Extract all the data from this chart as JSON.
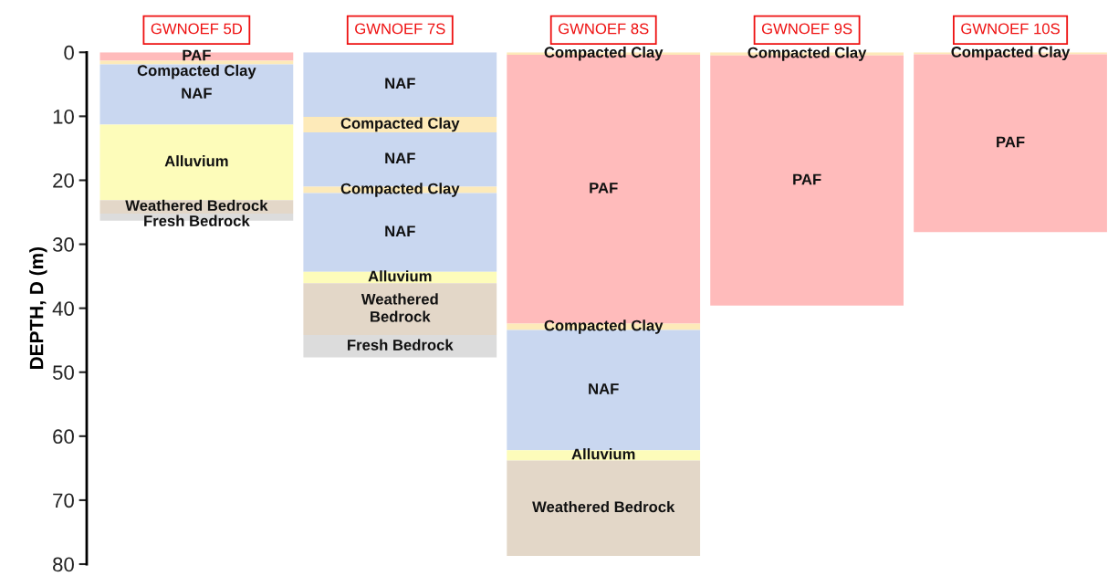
{
  "chart_data": {
    "type": "bar",
    "stacked": true,
    "ylabel": "DEPTH, D (m)",
    "categories": [
      "GWNOEF 5D",
      "GWNOEF 7S",
      "GWNOEF 8S",
      "GWNOEF 9S",
      "GWNOEF 10S"
    ],
    "ylim": [
      80,
      0
    ],
    "yticks": [
      0,
      10,
      20,
      30,
      40,
      50,
      60,
      70,
      80
    ],
    "grid": false,
    "legend": false,
    "tick_labels": "y",
    "series": [
      {
        "values": [
          1.3,
          10.1,
          0.4,
          0.5,
          0.3
        ],
        "colors": [
          "#ffbbbb",
          "#c9d7f0",
          "#fdeab9",
          "#fdeab9",
          "#fdeab9"
        ],
        "value_labels": [
          "PAF",
          "NAF",
          "Compacted Clay",
          "Compacted Clay",
          "Compacted Clay"
        ]
      },
      {
        "values": [
          0.6,
          2.4,
          42.0,
          39.1,
          27.8
        ],
        "colors": [
          "#fdeab9",
          "#fdeab9",
          "#ffbbbb",
          "#ffbbbb",
          "#ffbbbb"
        ],
        "value_labels": [
          "Compacted Clay",
          "Compacted Clay",
          "PAF",
          "PAF",
          "PAF"
        ]
      },
      {
        "values": [
          9.4,
          8.5,
          1.0,
          null,
          null
        ],
        "colors": [
          "#c9d7f0",
          "#c9d7f0",
          "#fdeab9",
          null,
          null
        ],
        "value_labels": [
          "NAF",
          "NAF",
          "Compacted Clay",
          null,
          null
        ]
      },
      {
        "values": [
          11.8,
          1.0,
          18.8,
          null,
          null
        ],
        "colors": [
          "#fdfcba",
          "#fdeab9",
          "#c9d7f0",
          null,
          null
        ],
        "value_labels": [
          "Alluvium",
          "Compacted Clay",
          "NAF",
          null,
          null
        ]
      },
      {
        "values": [
          2.1,
          12.3,
          1.6,
          null,
          null
        ],
        "colors": [
          "#e3d7c8",
          "#c9d7f0",
          "#fdfcba",
          null,
          null
        ],
        "value_labels": [
          "Weathered Bedrock",
          "NAF",
          "Alluvium",
          null,
          null
        ]
      },
      {
        "values": [
          1.1,
          1.8,
          14.9,
          null,
          null
        ],
        "colors": [
          "#dcdcdc",
          "#fdfcba",
          "#e3d7c8",
          null,
          null
        ],
        "value_labels": [
          "Fresh Bedrock",
          "Alluvium",
          "Weathered Bedrock",
          null,
          null
        ]
      },
      {
        "values": [
          null,
          8.1,
          null,
          null,
          null
        ],
        "colors": [
          null,
          "#e3d7c8",
          null,
          null,
          null
        ],
        "value_labels": [
          null,
          "Weathered\nBedrock",
          null,
          null,
          null
        ]
      },
      {
        "values": [
          null,
          3.5,
          null,
          null,
          null
        ],
        "colors": [
          null,
          "#dcdcdc",
          null,
          null,
          null
        ],
        "value_labels": [
          null,
          "Fresh Bedrock",
          null,
          null,
          null
        ]
      }
    ]
  }
}
